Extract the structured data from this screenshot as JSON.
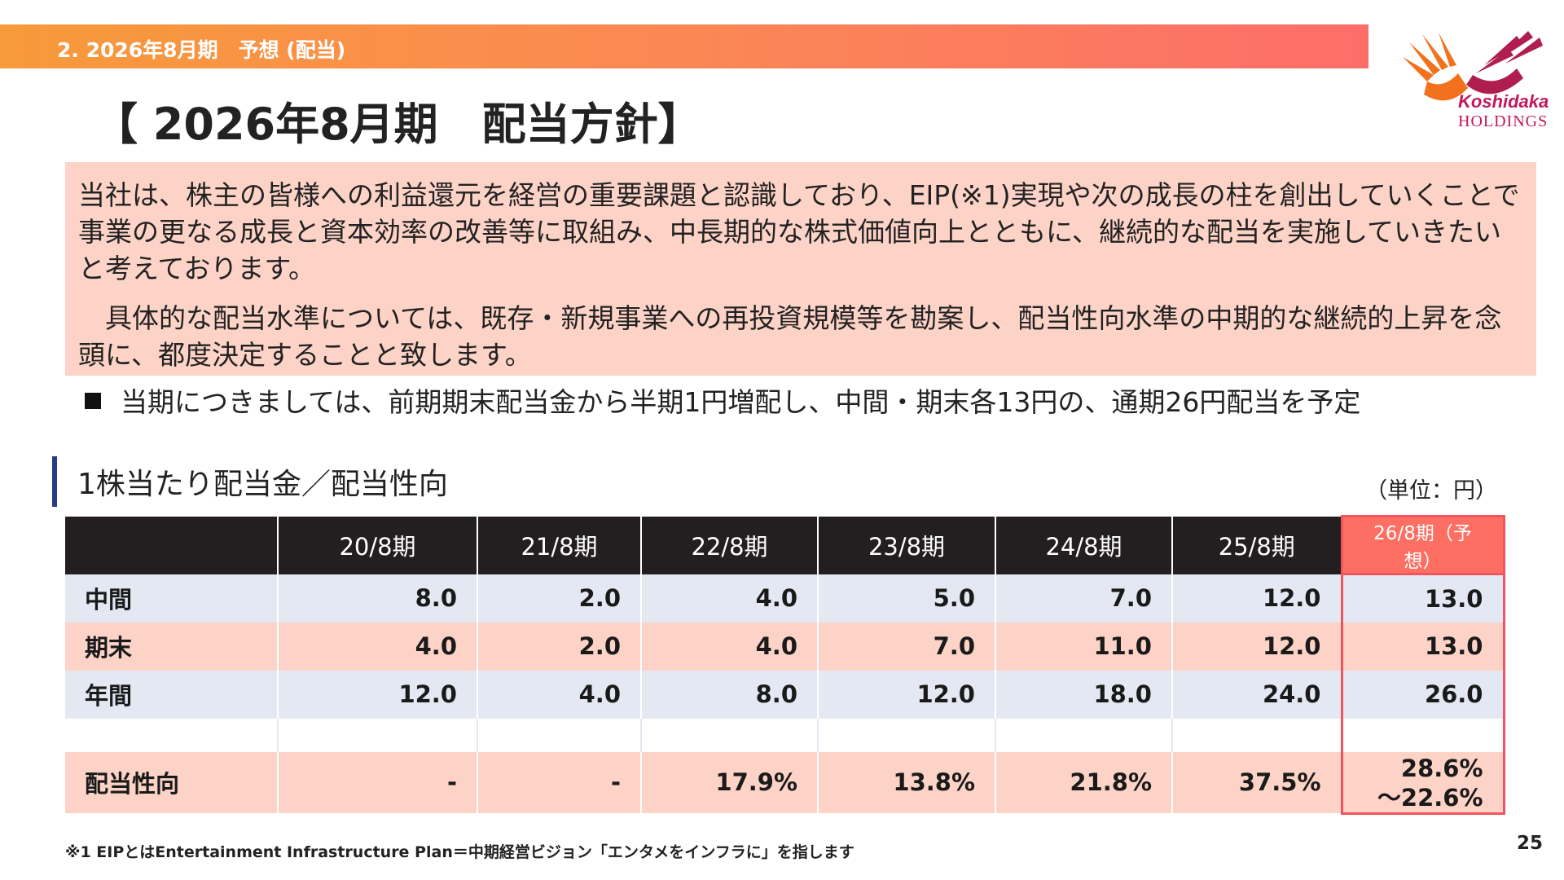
{
  "header": {
    "section_label": "2. 2026年8月期　予想 (配当)"
  },
  "logo": {
    "name_line1": "Koshidaka",
    "name_line2": "HOLDINGS",
    "brand_color": "#c2185b",
    "accent_color": "#f2711c"
  },
  "title": "【 2026年8月期　配当方針】",
  "policy": {
    "paragraph1": "当社は、株主の皆様への利益還元を経営の重要課題と認識しており、EIP(※1)実現や次の成長の柱を創出していくことで事業の更なる成長と資本効率の改善等に取組み、中長期的な株式価値向上とともに、継続的な配当を実施していきたいと考えております。",
    "paragraph2": "　具体的な配当水準については、既存・新規事業への再投資規模等を勘案し、配当性向水準の中期的な継続的上昇を念頭に、都度決定することと致します。"
  },
  "bullet": "当期につきましては、前期期末配当金から半期1円増配し、中間・期末各13円の、通期26円配当を予定",
  "section": {
    "title": "1株当たり配当金／配当性向",
    "unit": "（単位：円）"
  },
  "table": {
    "headers": [
      "20/8期",
      "21/8期",
      "22/8期",
      "23/8期",
      "24/8期",
      "25/8期",
      "26/8期（予想）"
    ],
    "rows": [
      {
        "label": "中間",
        "values": [
          "8.0",
          "2.0",
          "4.0",
          "5.0",
          "7.0",
          "12.0",
          "13.0"
        ]
      },
      {
        "label": "期末",
        "values": [
          "4.0",
          "2.0",
          "4.0",
          "7.0",
          "11.0",
          "12.0",
          "13.0"
        ]
      },
      {
        "label": "年間",
        "values": [
          "12.0",
          "4.0",
          "8.0",
          "12.0",
          "18.0",
          "24.0",
          "26.0"
        ]
      }
    ],
    "payout": {
      "label": "配当性向",
      "values": [
        "-",
        "-",
        "17.9%",
        "13.8%",
        "21.8%",
        "37.5%"
      ],
      "forecast_line1": "28.6%",
      "forecast_line2": "～22.6%"
    }
  },
  "footnote": "※1 EIPとはEntertainment Infrastructure Plan＝中期経営ビジョン「エンタメをインフラに」を指します",
  "page_number": "25"
}
